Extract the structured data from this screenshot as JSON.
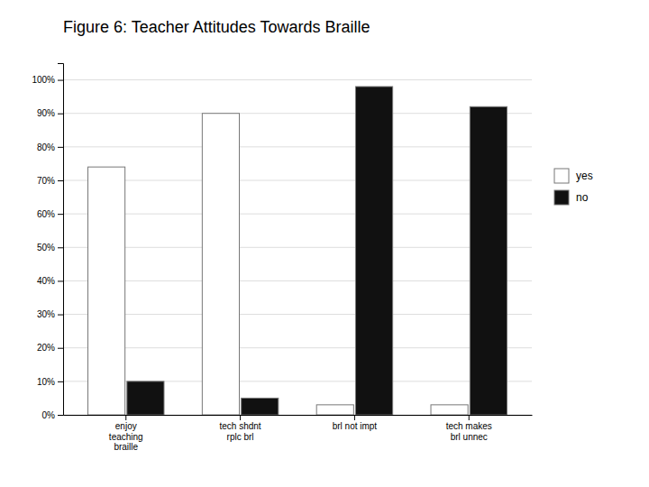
{
  "chart_data": {
    "type": "bar",
    "title": "Figure 6: Teacher Attitudes Towards Braille",
    "categories": [
      "enjoy\nteaching\nbraille",
      "tech shdnt\nrplc brl",
      "brl not impt",
      "tech makes\nbrl unnec"
    ],
    "series": [
      {
        "name": "yes",
        "color": "#ffffff",
        "values": [
          0.74,
          0.9,
          0.03,
          0.03
        ]
      },
      {
        "name": "no",
        "color": "#111111",
        "values": [
          0.1,
          0.05,
          0.98,
          0.92
        ]
      }
    ],
    "ylim": [
      0,
      1.05
    ],
    "yticks": [
      {
        "value": 0.0,
        "label": "0%"
      },
      {
        "value": 0.1,
        "label": "10%"
      },
      {
        "value": 0.2,
        "label": "20%"
      },
      {
        "value": 0.3,
        "label": "30%"
      },
      {
        "value": 0.4,
        "label": "40%"
      },
      {
        "value": 0.5,
        "label": "50%"
      },
      {
        "value": 0.6,
        "label": "60%"
      },
      {
        "value": 0.7,
        "label": "70%"
      },
      {
        "value": 0.8,
        "label": "80%"
      },
      {
        "value": 0.9,
        "label": "90%"
      },
      {
        "value": 1.0,
        "label": "100%"
      }
    ],
    "grid": true,
    "legend": "right"
  }
}
